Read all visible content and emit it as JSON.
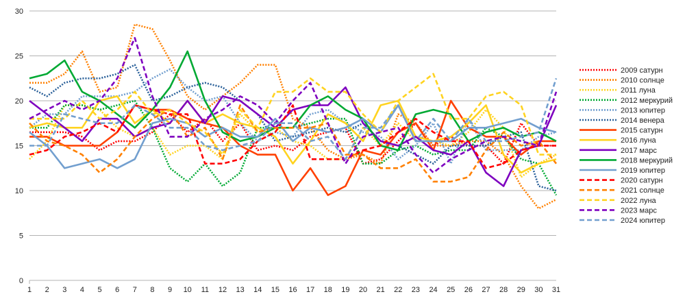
{
  "chart_data": {
    "type": "line",
    "title": "",
    "xlabel": "",
    "ylabel": "",
    "x": [
      1,
      2,
      3,
      4,
      5,
      6,
      7,
      8,
      9,
      10,
      11,
      12,
      13,
      14,
      15,
      16,
      17,
      18,
      19,
      20,
      21,
      22,
      23,
      24,
      25,
      26,
      27,
      28,
      29,
      30,
      31
    ],
    "ylim": [
      0,
      30
    ],
    "yticks": [
      0,
      5,
      10,
      15,
      20,
      25,
      30
    ],
    "grid": "horizontal",
    "legend_position": "right",
    "series": [
      {
        "name": "2009 сатурн",
        "color": "#ff0000",
        "style": "dotted",
        "values": [
          16.5,
          16.5,
          16.5,
          16,
          14.5,
          15.5,
          15.5,
          16.5,
          18.5,
          16.5,
          18,
          15.5,
          17.5,
          14.5,
          15,
          14.5,
          16,
          16.5,
          17,
          13,
          13.5,
          15.5,
          17.5,
          15,
          16,
          15,
          15,
          13,
          17.5,
          15,
          15
        ]
      },
      {
        "name": "2010 солнце",
        "color": "#ff8000",
        "style": "dotted",
        "values": [
          22,
          22,
          23,
          25.5,
          21,
          21.5,
          28.5,
          28,
          24.5,
          20.5,
          19,
          20.5,
          22,
          24,
          24,
          18,
          17,
          14.5,
          13.5,
          14,
          13,
          18.5,
          17.5,
          15,
          15,
          15.5,
          15.5,
          14,
          10.5,
          8,
          9
        ]
      },
      {
        "name": "2011 луна",
        "color": "#ffd320",
        "style": "dotted",
        "values": [
          13.5,
          15.5,
          19.5,
          19.5,
          19,
          17,
          16,
          17,
          14,
          15,
          15,
          13.5,
          18.5,
          16.5,
          17,
          15.5,
          15,
          13.5,
          13.5,
          17,
          15,
          17.5,
          15.5,
          15.5,
          15,
          16.5,
          19,
          17,
          11.5,
          13,
          14
        ]
      },
      {
        "name": "2012 меркурий",
        "color": "#00a933",
        "style": "dotted",
        "values": [
          17,
          17,
          19.5,
          19.5,
          19,
          19.5,
          20,
          17,
          12.5,
          11,
          13,
          10.5,
          12,
          17,
          17,
          17,
          17.5,
          18,
          18,
          13,
          13,
          14.5,
          15,
          14,
          14.5,
          14.5,
          17,
          16,
          13.5,
          13,
          9.5
        ]
      },
      {
        "name": "2013 юпитер",
        "color": "#729fcf",
        "style": "dotted",
        "values": [
          17,
          18.5,
          18.5,
          20.5,
          20.5,
          20.5,
          21,
          22.5,
          23.5,
          21.5,
          20,
          20.5,
          17.5,
          15.5,
          16.5,
          16,
          18.5,
          19,
          17.5,
          16.5,
          16,
          13.5,
          15,
          17.5,
          13,
          18,
          14.5,
          14.5,
          14.5,
          16,
          16.5
        ]
      },
      {
        "name": "2014 венера",
        "color": "#2a6099",
        "style": "dotted",
        "values": [
          21.5,
          20.5,
          22,
          22.5,
          22.5,
          23,
          24,
          20,
          20.5,
          21.5,
          22,
          21.5,
          20,
          18.5,
          15.5,
          16,
          16.5,
          17,
          16.5,
          17.5,
          15.5,
          15,
          14,
          13,
          15,
          15,
          15,
          16,
          16.5,
          10.5,
          10
        ]
      },
      {
        "name": "2015 сатурн",
        "color": "#ff4000",
        "style": "solid",
        "values": [
          16,
          16,
          15,
          15,
          15,
          16.5,
          19.5,
          19,
          19,
          18,
          17.5,
          17,
          15,
          14,
          14,
          10,
          12.5,
          9.5,
          10.5,
          14.5,
          14,
          16.5,
          17.5,
          14.5,
          20,
          17,
          16,
          16,
          14,
          15.5,
          15.5
        ]
      },
      {
        "name": "2016 луна",
        "color": "#ffd320",
        "style": "solid",
        "values": [
          17,
          17.5,
          17,
          17,
          20,
          20.5,
          17.5,
          19,
          17.5,
          20,
          17.5,
          18.5,
          17.5,
          17,
          16,
          13,
          15.5,
          18.5,
          17.5,
          15.5,
          19.5,
          20,
          16,
          15.5,
          16,
          17.5,
          19.5,
          14,
          12,
          13,
          13.5
        ]
      },
      {
        "name": "2017 марс",
        "color": "#7e00bf",
        "style": "solid",
        "values": [
          20,
          18.5,
          17,
          15.5,
          18,
          18,
          16,
          17,
          17.5,
          20,
          17.5,
          20.5,
          20,
          18.5,
          17,
          19,
          19.5,
          19.5,
          21.5,
          17.5,
          15.5,
          15,
          16,
          14.5,
          14,
          15.5,
          12,
          10.5,
          14.5,
          15,
          19.5
        ]
      },
      {
        "name": "2018 меркурий",
        "color": "#00a933",
        "style": "solid",
        "values": [
          22.5,
          23,
          24.5,
          21,
          20,
          18.5,
          17,
          19,
          21.5,
          25.5,
          20,
          16.5,
          15.5,
          16,
          17,
          17,
          19.5,
          20.5,
          19,
          18,
          15,
          14.5,
          18.5,
          19,
          18.5,
          15.5,
          16.5,
          17,
          16,
          16.5,
          15.5
        ]
      },
      {
        "name": "2019 юпитер",
        "color": "#729fcf",
        "style": "solid",
        "values": [
          16.5,
          15,
          12.5,
          13,
          13.5,
          12.5,
          13.5,
          17.5,
          18,
          17.5,
          16,
          17,
          16,
          16,
          18,
          15.5,
          17,
          16.5,
          17,
          18,
          16.5,
          19.5,
          15.5,
          15.5,
          15.5,
          17,
          17,
          17.5,
          18,
          17,
          16.5
        ]
      },
      {
        "name": "2020 сатурн",
        "color": "#ff0000",
        "style": "dashed",
        "values": [
          14,
          14.5,
          16,
          16.5,
          17.5,
          16.5,
          19.5,
          19,
          18.5,
          18.5,
          13,
          13,
          13.5,
          15.5,
          16.5,
          19.5,
          13.5,
          13.5,
          13.5,
          14.5,
          15,
          16.5,
          18,
          16.5,
          15.5,
          15.5,
          12.5,
          13,
          14.5,
          15,
          15
        ]
      },
      {
        "name": "2021 солнце",
        "color": "#ff8000",
        "style": "dashed",
        "values": [
          17.5,
          15.5,
          15,
          14,
          12,
          13.5,
          16,
          18,
          19,
          16,
          17,
          13.5,
          19.5,
          16.5,
          17,
          17,
          17,
          17.5,
          14,
          14,
          12.5,
          12.5,
          13.5,
          11,
          11,
          11.5,
          14.5,
          16.5,
          15,
          15.5,
          13
        ]
      },
      {
        "name": "2022 луна",
        "color": "#ffd320",
        "style": "dashed",
        "values": [
          18,
          18,
          18,
          20,
          18,
          19,
          21,
          18.5,
          19,
          17.5,
          16.5,
          14,
          19,
          17,
          21,
          21,
          22.5,
          21,
          21,
          18.5,
          16.5,
          20,
          21.5,
          23,
          18,
          18,
          20.5,
          21,
          19.5,
          14,
          14
        ]
      },
      {
        "name": "2023 марс",
        "color": "#7e00bf",
        "style": "dashed",
        "values": [
          18,
          19,
          20,
          19,
          20,
          22.5,
          27,
          20.5,
          16,
          16,
          18,
          19,
          20.5,
          19.5,
          17.5,
          20,
          22,
          17.5,
          13,
          16,
          16.5,
          17,
          14,
          12,
          13.5,
          14.5,
          15.5,
          16,
          15.5,
          15,
          21
        ]
      },
      {
        "name": "2024 юпитер",
        "color": "#729fcf",
        "style": "dashed",
        "values": [
          15,
          15,
          18.5,
          18,
          17.5,
          17.5,
          19.5,
          18.5,
          17,
          17,
          15,
          14.5,
          15,
          15.5,
          17.5,
          17.5,
          15.5,
          16,
          13.5,
          17,
          17,
          19.5,
          15.5,
          18,
          15.5,
          18,
          15.5,
          15.5,
          16,
          16.5,
          22.5
        ]
      }
    ]
  }
}
